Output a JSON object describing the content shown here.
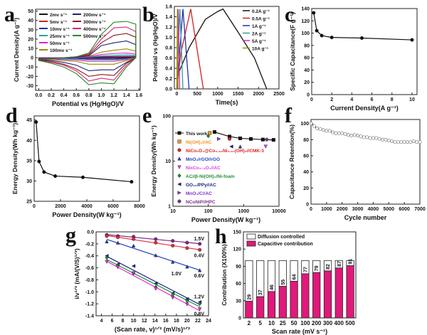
{
  "chart_data": [
    {
      "id": "a",
      "panel_label": "a",
      "type": "line",
      "xlabel": "Potential vs (Hg/HgO)/V",
      "ylabel": "Current Density(A g⁻¹)",
      "xlim": [
        -0.05,
        1.62
      ],
      "ylim": [
        -35,
        52
      ],
      "xticks": [
        0,
        0.2,
        0.4,
        0.6,
        0.8,
        1.0,
        1.2,
        1.4,
        1.6
      ],
      "xtick_labels": [
        "0.0",
        "0.2",
        "0.4",
        "0.6",
        "0.8",
        "1.0",
        "1.2",
        "1.4",
        "1.6"
      ],
      "yticks": [
        -30,
        -20,
        -10,
        0,
        10,
        20,
        30,
        40,
        50
      ],
      "ytick_labels": [
        "-30",
        "-20",
        "-10",
        "0",
        "10",
        "20",
        "30",
        "40",
        "50"
      ],
      "x": [
        0,
        0.2,
        0.4,
        0.6,
        0.8,
        1.0,
        1.2,
        1.4,
        1.55
      ],
      "series": [
        {
          "name": "2mv s⁻¹",
          "color": "#111111",
          "upper": [
            0,
            0,
            0,
            0,
            0.1,
            0.3,
            0.4,
            0.5,
            0.5
          ],
          "lower": [
            -0.2,
            -0.2,
            -0.3,
            -0.3,
            -0.5,
            -0.5,
            -0.5,
            -0.3,
            0
          ]
        },
        {
          "name": "5mv s⁻¹",
          "color": "#d42020",
          "upper": [
            0,
            0,
            0,
            0,
            0.2,
            0.6,
            0.8,
            1,
            1
          ],
          "lower": [
            -0.3,
            -0.4,
            -0.5,
            -0.6,
            -0.9,
            -0.9,
            -0.9,
            -0.6,
            0
          ]
        },
        {
          "name": "10mv s⁻¹",
          "color": "#1f2fb0",
          "upper": [
            0,
            0,
            0,
            0.1,
            0.4,
            1,
            1.3,
            1.5,
            1.5
          ],
          "lower": [
            -0.5,
            -0.6,
            -0.7,
            -0.9,
            -1.5,
            -1.5,
            -1.5,
            -1,
            0
          ]
        },
        {
          "name": "25mv s⁻¹",
          "color": "#2a9fa0",
          "upper": [
            -0.3,
            0,
            0,
            0.2,
            0.8,
            2,
            2.5,
            3,
            2.5
          ],
          "lower": [
            -0.8,
            -1,
            -1.2,
            -1.5,
            -2.5,
            -2.5,
            -2.5,
            -1.5,
            0
          ]
        },
        {
          "name": "50mv s⁻¹",
          "color": "#e020d0",
          "upper": [
            -0.5,
            0,
            0,
            0.3,
            1,
            3.5,
            4.5,
            5,
            4
          ],
          "lower": [
            -1,
            -1.5,
            -2,
            -2.5,
            -4,
            -4,
            -4,
            -2,
            0
          ]
        },
        {
          "name": "100mv s⁻¹",
          "color": "#9a8a00",
          "upper": [
            -1,
            -0.5,
            0,
            0.5,
            1.5,
            6,
            8,
            9.5,
            7
          ],
          "lower": [
            -1.5,
            -2,
            -3,
            -4,
            -7,
            -7,
            -7,
            -3,
            0
          ]
        },
        {
          "name": "200mv s⁻¹",
          "color": "#1a237e",
          "upper": [
            -1,
            -0.5,
            0,
            0.5,
            2,
            13,
            16,
            18,
            14
          ],
          "lower": [
            -2,
            -3,
            -5,
            -8,
            -14,
            -13,
            -13,
            -5,
            0
          ]
        },
        {
          "name": "300mv s⁻¹",
          "color": "#8b1a1a",
          "upper": [
            -1.5,
            -1,
            0,
            1,
            3,
            16,
            24,
            26,
            22
          ],
          "lower": [
            -2.5,
            -4,
            -7,
            -12,
            -20,
            -18,
            -19,
            -6,
            0
          ]
        },
        {
          "name": "400mv s⁻¹",
          "color": "#e0207a",
          "upper": [
            -2,
            -1,
            0,
            1,
            4,
            20,
            32,
            33,
            28
          ],
          "lower": [
            -3,
            -5,
            -8,
            -14,
            -25,
            -22,
            -24,
            -8,
            0
          ]
        },
        {
          "name": "500mv s⁻¹",
          "color": "#228b22",
          "upper": [
            -2,
            -1,
            0,
            1,
            5,
            25,
            38,
            39,
            36
          ],
          "lower": [
            -3,
            -6,
            -10,
            -17,
            -29,
            -27,
            -28,
            -10,
            0
          ]
        }
      ]
    },
    {
      "id": "b",
      "panel_label": "b",
      "type": "line",
      "xlabel": "Time(s)",
      "ylabel": "Potential vs (Hg/HgO)/V",
      "xlim": [
        -60,
        2500
      ],
      "ylim": [
        0,
        1.6
      ],
      "xticks": [
        0,
        500,
        1000,
        1500,
        2000,
        2500
      ],
      "xtick_labels": [
        "0",
        "500",
        "1000",
        "1500",
        "2000",
        "2500"
      ],
      "yticks": [
        0,
        0.2,
        0.4,
        0.6,
        0.8,
        1.0,
        1.2,
        1.4,
        1.6
      ],
      "ytick_labels": [
        "0.0",
        "0.2",
        "0.4",
        "0.6",
        "0.8",
        "1.0",
        "1.2",
        "1.4",
        "1.6"
      ],
      "series": [
        {
          "name": "0.2A g⁻¹",
          "color": "#111111",
          "x": [
            0,
            40,
            300,
            700,
            1000,
            1130,
            1500,
            1900,
            2200
          ],
          "y": [
            0,
            0.3,
            0.8,
            1.35,
            1.5,
            1.55,
            1.1,
            0.6,
            0
          ]
        },
        {
          "name": "0.5A g⁻¹",
          "color": "#d42020",
          "x": [
            0,
            100,
            340,
            650
          ],
          "y": [
            0,
            0.7,
            1.55,
            0
          ]
        },
        {
          "name": "1A g⁻¹",
          "color": "#1f2fb0",
          "x": [
            0,
            150,
            300
          ],
          "y": [
            0,
            1.55,
            0
          ]
        },
        {
          "name": "2A g⁻¹",
          "color": "#2a9fa0",
          "x": [
            0,
            75,
            150
          ],
          "y": [
            0,
            1.55,
            0
          ]
        },
        {
          "name": "5A g⁻¹",
          "color": "#e020d0",
          "x": [
            0,
            35,
            70
          ],
          "y": [
            0,
            1.55,
            0
          ]
        },
        {
          "name": "10A g⁻¹",
          "color": "#9a8a00",
          "x": [
            0,
            15,
            30
          ],
          "y": [
            0,
            1.55,
            0
          ]
        }
      ]
    },
    {
      "id": "c",
      "panel_label": "c",
      "type": "line",
      "xlabel": "Current Density(A g⁻¹)",
      "ylabel": "Specific Capacitance(F g⁻¹)",
      "xlim": [
        0,
        10.5
      ],
      "ylim": [
        0,
        140
      ],
      "xticks": [
        0,
        2,
        4,
        6,
        8,
        10
      ],
      "xtick_labels": [
        "0",
        "2",
        "4",
        "6",
        "8",
        "10"
      ],
      "yticks": [
        0,
        20,
        40,
        60,
        80,
        100,
        120,
        140
      ],
      "ytick_labels": [
        "0",
        "20",
        "40",
        "60",
        "80",
        "100",
        "120",
        "140"
      ],
      "series": [
        {
          "name": "",
          "color": "#111111",
          "marker": "circle",
          "x": [
            0.2,
            0.5,
            1,
            2,
            5,
            10
          ],
          "y": [
            133,
            104,
            96,
            93,
            92,
            89
          ]
        }
      ]
    },
    {
      "id": "d",
      "panel_label": "d",
      "type": "line",
      "xlabel": "Power Density(W kg⁻¹)",
      "ylabel": "Energy Density(Wh kg⁻¹)",
      "xlim": [
        0,
        8000
      ],
      "ylim": [
        25,
        46
      ],
      "xticks": [
        0,
        2000,
        4000,
        6000,
        8000
      ],
      "xtick_labels": [
        "0",
        "2000",
        "4000",
        "6000",
        "8000"
      ],
      "yticks": [
        25,
        30,
        35,
        40,
        45
      ],
      "ytick_labels": [
        "25",
        "30",
        "35",
        "40",
        "45"
      ],
      "series": [
        {
          "name": "",
          "color": "#111111",
          "marker": "circle",
          "x": [
            150,
            370,
            750,
            1600,
            3700,
            7400
          ],
          "y": [
            44.5,
            34.8,
            32.2,
            31.2,
            30.9,
            29.8
          ]
        }
      ]
    },
    {
      "id": "e",
      "panel_label": "e",
      "type": "scatter",
      "xscale": "log",
      "yscale": "log",
      "xlabel": "Power Density(W kg⁻¹)",
      "ylabel": "Energy Density(Wh kg⁻¹)",
      "xlim": [
        10,
        10000
      ],
      "ylim": [
        1,
        100
      ],
      "xticks": [
        10,
        100,
        1000,
        10000
      ],
      "xtick_labels": [
        "10",
        "100",
        "1000",
        "10000"
      ],
      "yticks": [
        1,
        10,
        100
      ],
      "ytick_labels": [
        "1",
        "10",
        "100"
      ],
      "series": [
        {
          "name": "This work",
          "color": "#111111",
          "marker": "square",
          "line": true,
          "x": [
            150,
            400,
            800,
            1600,
            3500,
            7000
          ],
          "y": [
            44,
            35,
            32,
            31,
            30,
            29.5
          ]
        },
        {
          "name": "Ni(OH)₂//AC",
          "color": "#f0901e",
          "marker": "square",
          "x": [
            110
          ],
          "y": [
            42
          ]
        },
        {
          "name": "NiCo₂O₄@Co₀.₃₃Ni₀.₆₇(OH)₂//CMK-3",
          "color": "#e02020",
          "marker": "circle",
          "x": [
            400
          ],
          "y": [
            31
          ]
        },
        {
          "name": "MnO₂/rGO//rGO",
          "color": "#1f3fc0",
          "marker": "triangle-up",
          "x": [
            800
          ],
          "y": [
            21
          ]
        },
        {
          "name": "NixCo₃₋ₓO₄//AC",
          "color": "#e040e0",
          "marker": "triangle-down",
          "x": [
            4200
          ],
          "y": [
            21
          ]
        },
        {
          "name": "AC//β-Ni(OH)₂/Ni-foam",
          "color": "#209030",
          "marker": "diamond",
          "x": [
            100
          ],
          "y": [
            36
          ]
        },
        {
          "name": "GO₁₀/PPy//AC",
          "color": "#1a237e",
          "marker": "triangle-left",
          "x": [
            450
          ],
          "y": [
            21
          ]
        },
        {
          "name": "MnO₂/C//AC",
          "color": "#8030d0",
          "marker": "triangle-right",
          "x": [
            200
          ],
          "y": [
            31
          ]
        },
        {
          "name": "NCoNiP//HPC",
          "color": "#803090",
          "marker": "circle",
          "x": [
            4500
          ],
          "y": [
            30
          ]
        }
      ]
    },
    {
      "id": "f",
      "panel_label": "f",
      "type": "scatter",
      "xlabel": "Cycle number",
      "ylabel": "Capacitance Retention(%)",
      "xlim": [
        0,
        7000
      ],
      "ylim": [
        0,
        105
      ],
      "xticks": [
        0,
        1000,
        2000,
        3000,
        4000,
        5000,
        6000,
        7000
      ],
      "xtick_labels": [
        "0",
        "1000",
        "2000",
        "3000",
        "4000",
        "5000",
        "6000",
        "7000"
      ],
      "yticks": [
        0,
        20,
        40,
        60,
        80,
        100
      ],
      "ytick_labels": [
        "0",
        "20",
        "40",
        "60",
        "80",
        "100"
      ],
      "series": [
        {
          "name": "",
          "color": "#111111",
          "marker": "circle",
          "line": true,
          "x": [
            0,
            200,
            400,
            600,
            800,
            1000,
            1200,
            1400,
            1600,
            1800,
            2000,
            2200,
            2400,
            2600,
            2800,
            3000,
            3200,
            3400,
            3600,
            3800,
            4000,
            4200,
            4400,
            4600,
            4800,
            5000,
            5200,
            5400,
            5600,
            5800,
            6000,
            6200,
            6400,
            6600,
            6800,
            7000
          ],
          "y": [
            100,
            97,
            94,
            93,
            92,
            91,
            91,
            89,
            88,
            88,
            88,
            87,
            86,
            85,
            86,
            85,
            84,
            83,
            83,
            82,
            82,
            82,
            81,
            80,
            80,
            79,
            78,
            77,
            77,
            77,
            77,
            77,
            77,
            78,
            77,
            77
          ]
        }
      ]
    },
    {
      "id": "g",
      "panel_label": "g",
      "type": "scatter",
      "xlabel": "(Scan rate, v)¹ᐟ² (mV/s)¹ᐟ²",
      "ylabel": "i/v¹ᐟ² (mA/(V/S)¹ᐟ²)",
      "xlim": [
        3,
        24
      ],
      "ylim": [
        -1.4,
        0
      ],
      "xticks": [
        4,
        6,
        8,
        10,
        12,
        14,
        16,
        18,
        20,
        22,
        24
      ],
      "xtick_labels": [
        "4",
        "6",
        "8",
        "10",
        "12",
        "14",
        "16",
        "18",
        "20",
        "22",
        "24"
      ],
      "yticks": [
        -1.4,
        -1.2,
        -1.0,
        -0.8,
        -0.6,
        -0.4,
        -0.2,
        0
      ],
      "ytick_labels": [
        "-1.4",
        "-1.2",
        "-1.0",
        "-0.8",
        "-0.6",
        "-0.4",
        "-0.2",
        "0.0"
      ],
      "x": [
        5,
        7.07,
        10,
        14.14,
        17.32,
        20,
        22.36
      ],
      "series": [
        {
          "name": "1.5V",
          "color": "#7a2a8a",
          "marker": "circle",
          "y": [
            -0.05,
            -0.07,
            -0.08,
            -0.12,
            -0.15,
            -0.18,
            -0.2
          ]
        },
        {
          "name": "0.4V",
          "color": "#e02a3a",
          "marker": "circle",
          "y": [
            -0.07,
            -0.09,
            -0.12,
            -0.18,
            -0.23,
            -0.27,
            -0.3
          ]
        },
        {
          "name": "0.6V",
          "color": "#1f3fb0",
          "marker": "triangle-up",
          "y": [
            -0.16,
            -0.18,
            -0.23,
            -0.39,
            -0.5,
            -0.58,
            -0.64
          ]
        },
        {
          "name": "1.2V",
          "color": "#1a237e",
          "marker": "triangle-left",
          "y": [
            -0.4,
            -0.54,
            -0.57,
            -0.86,
            -1.02,
            -1.12,
            -1.17
          ]
        },
        {
          "name": "1.0V",
          "color": "#209030",
          "marker": "diamond",
          "y": [
            -0.43,
            -0.56,
            -0.69,
            -0.92,
            -1.05,
            -1.15,
            -1.2
          ]
        },
        {
          "name": "0.8V",
          "color": "#e030d0",
          "marker": "triangle-down",
          "y": [
            -0.5,
            -0.59,
            -0.69,
            -0.95,
            -1.1,
            -1.21,
            -1.29
          ]
        }
      ]
    },
    {
      "id": "h",
      "panel_label": "h",
      "type": "bar",
      "xlabel": "Scan rate (mV s⁻¹)",
      "ylabel": "Contribution (X100%)",
      "ylim": [
        0,
        150
      ],
      "yticks": [
        0,
        30,
        60,
        90,
        120,
        150
      ],
      "ytick_labels": [
        "0",
        "30",
        "60",
        "90",
        "120",
        "150"
      ],
      "categories": [
        "2",
        "5",
        "10",
        "25",
        "50",
        "100",
        "200",
        "300",
        "400",
        "500"
      ],
      "series": [
        {
          "name": "Diffusion controlled",
          "color": "#ffffff",
          "values": [
            71,
            63,
            54,
            45,
            36,
            23,
            21,
            18,
            13,
            9
          ]
        },
        {
          "name": "Capacitive contribution",
          "color": "#e0197a",
          "values": [
            29,
            37,
            46,
            55,
            64,
            77,
            79,
            82,
            87,
            91
          ]
        }
      ],
      "data_labels": [
        "29",
        "37",
        "46",
        "55",
        "64",
        "77",
        "79",
        "82",
        "87",
        "91"
      ]
    }
  ]
}
